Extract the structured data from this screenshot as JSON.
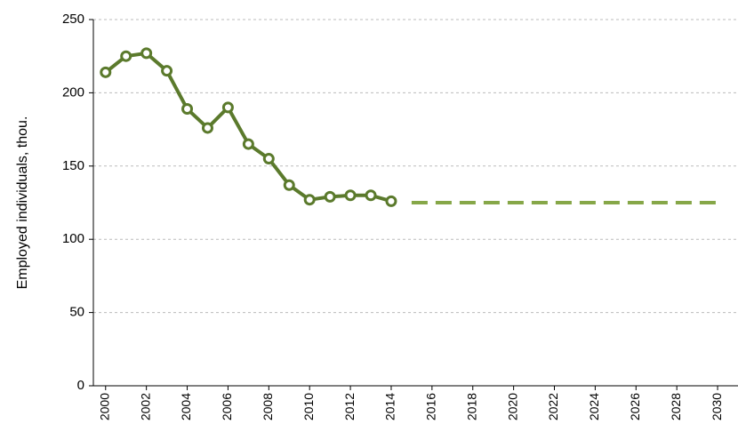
{
  "chart_data": {
    "type": "line",
    "y_label": "Employed individuals, thou.",
    "series": [
      {
        "x": [
          2000,
          2001,
          2002,
          2003,
          2004,
          2005,
          2006,
          2007,
          2008,
          2009,
          2010,
          2011,
          2012,
          2013,
          2014
        ],
        "values": [
          214,
          225,
          227,
          215,
          189,
          176,
          190,
          165,
          155,
          137,
          127,
          129,
          130,
          130,
          126
        ],
        "color": "#5b7a2c",
        "markers": true,
        "dashed": false
      },
      {
        "x": [
          2015,
          2030
        ],
        "values": [
          125,
          125
        ],
        "color": "#86a748",
        "markers": false,
        "dashed": true
      }
    ],
    "xlim": [
      1999.4,
      2031
    ],
    "xticks": [
      2000,
      2002,
      2004,
      2006,
      2008,
      2010,
      2012,
      2014,
      2016,
      2018,
      2020,
      2022,
      2024,
      2026,
      2028,
      2030
    ],
    "ylim": [
      0,
      250
    ],
    "yticks": [
      0,
      50,
      100,
      150,
      200,
      250
    ],
    "grid": true
  }
}
